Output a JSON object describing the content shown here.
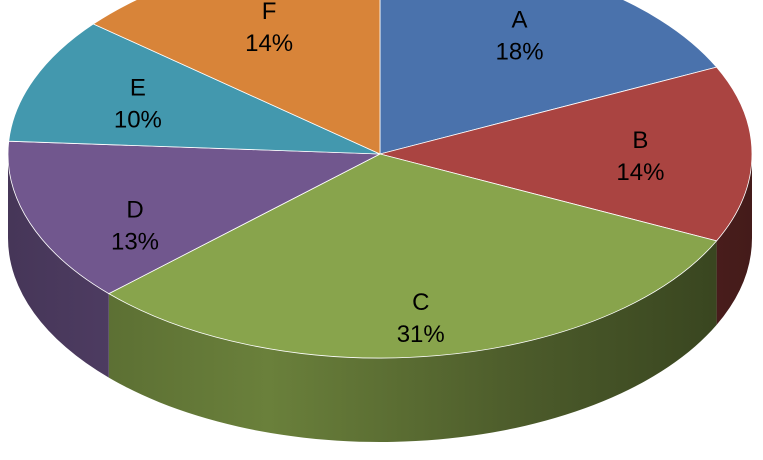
{
  "chart_data": {
    "type": "pie",
    "title": "",
    "style": "3d-tilted",
    "slices": [
      {
        "label": "A",
        "value": 18,
        "value_label": "18%",
        "color": "#4A72AC"
      },
      {
        "label": "B",
        "value": 14,
        "value_label": "14%",
        "color": "#AA4441"
      },
      {
        "label": "C",
        "value": 31,
        "value_label": "31%",
        "color": "#88A44C"
      },
      {
        "label": "D",
        "value": 13,
        "value_label": "13%",
        "color": "#71578E"
      },
      {
        "label": "E",
        "value": 10,
        "value_label": "10%",
        "color": "#4398AE"
      },
      {
        "label": "F",
        "value": 14,
        "value_label": "14%",
        "color": "#D88439"
      }
    ],
    "legend": "none"
  }
}
